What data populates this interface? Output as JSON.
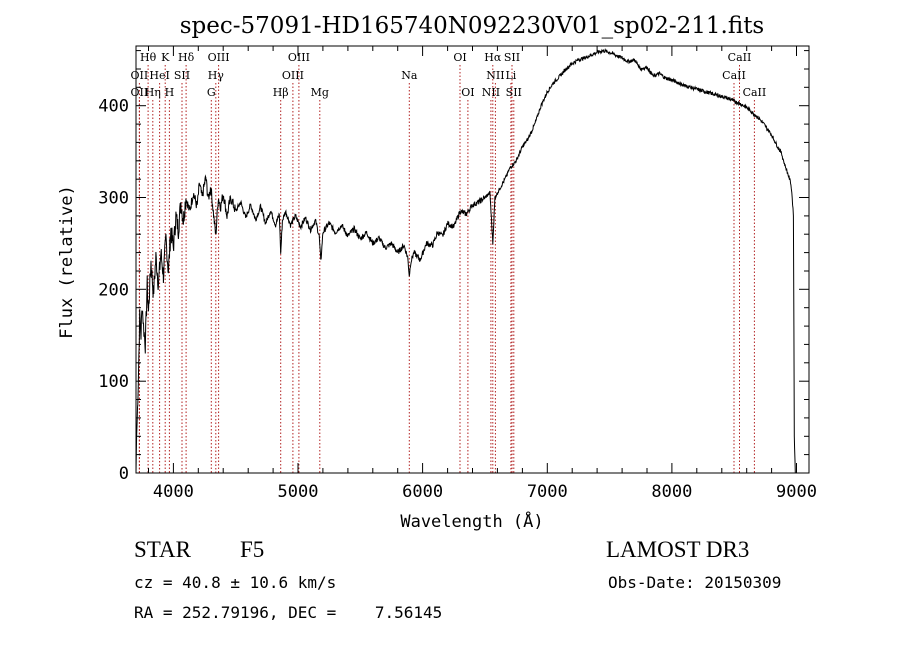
{
  "chart_data": {
    "type": "line",
    "title": "spec-57091-HD165740N092230V01_sp02-211.fits",
    "xlabel": "Wavelength (Å)",
    "ylabel": "Flux (relative)",
    "xlim": [
      3700,
      9100
    ],
    "ylim": [
      0,
      465
    ],
    "xticks": [
      4000,
      5000,
      6000,
      7000,
      8000,
      9000
    ],
    "yticks": [
      0,
      100,
      200,
      300,
      400
    ],
    "grid": false,
    "series": [
      {
        "name": "flux",
        "points": [
          [
            3700,
            0
          ],
          [
            3705,
            40
          ],
          [
            3712,
            70
          ],
          [
            3720,
            110
          ],
          [
            3730,
            170
          ],
          [
            3740,
            150
          ],
          [
            3750,
            185
          ],
          [
            3760,
            160
          ],
          [
            3775,
            140
          ],
          [
            3790,
            205
          ],
          [
            3800,
            175
          ],
          [
            3820,
            230
          ],
          [
            3840,
            195
          ],
          [
            3860,
            235
          ],
          [
            3880,
            205
          ],
          [
            3900,
            240
          ],
          [
            3920,
            215
          ],
          [
            3940,
            255
          ],
          [
            3960,
            220
          ],
          [
            3980,
            265
          ],
          [
            4000,
            245
          ],
          [
            4020,
            280
          ],
          [
            4040,
            265
          ],
          [
            4060,
            295
          ],
          [
            4080,
            275
          ],
          [
            4100,
            300
          ],
          [
            4130,
            285
          ],
          [
            4160,
            305
          ],
          [
            4190,
            290
          ],
          [
            4210,
            315
          ],
          [
            4230,
            300
          ],
          [
            4260,
            322
          ],
          [
            4280,
            298
          ],
          [
            4300,
            312
          ],
          [
            4320,
            285
          ],
          [
            4340,
            258
          ],
          [
            4360,
            300
          ],
          [
            4380,
            290
          ],
          [
            4400,
            305
          ],
          [
            4430,
            280
          ],
          [
            4460,
            300
          ],
          [
            4500,
            285
          ],
          [
            4540,
            295
          ],
          [
            4580,
            278
          ],
          [
            4620,
            292
          ],
          [
            4660,
            276
          ],
          [
            4700,
            290
          ],
          [
            4740,
            272
          ],
          [
            4780,
            286
          ],
          [
            4820,
            270
          ],
          [
            4850,
            282
          ],
          [
            4861,
            238
          ],
          [
            4875,
            275
          ],
          [
            4900,
            285
          ],
          [
            4940,
            270
          ],
          [
            4980,
            280
          ],
          [
            5020,
            268
          ],
          [
            5060,
            278
          ],
          [
            5100,
            265
          ],
          [
            5140,
            275
          ],
          [
            5170,
            258
          ],
          [
            5183,
            230
          ],
          [
            5200,
            262
          ],
          [
            5250,
            272
          ],
          [
            5300,
            262
          ],
          [
            5350,
            270
          ],
          [
            5400,
            258
          ],
          [
            5450,
            266
          ],
          [
            5500,
            255
          ],
          [
            5550,
            262
          ],
          [
            5600,
            250
          ],
          [
            5650,
            256
          ],
          [
            5700,
            245
          ],
          [
            5750,
            250
          ],
          [
            5800,
            240
          ],
          [
            5850,
            248
          ],
          [
            5880,
            235
          ],
          [
            5893,
            215
          ],
          [
            5905,
            230
          ],
          [
            5930,
            240
          ],
          [
            5980,
            232
          ],
          [
            6030,
            250
          ],
          [
            6080,
            248
          ],
          [
            6120,
            262
          ],
          [
            6160,
            258
          ],
          [
            6200,
            272
          ],
          [
            6250,
            268
          ],
          [
            6300,
            285
          ],
          [
            6350,
            282
          ],
          [
            6400,
            292
          ],
          [
            6450,
            295
          ],
          [
            6500,
            300
          ],
          [
            6540,
            305
          ],
          [
            6563,
            250
          ],
          [
            6580,
            300
          ],
          [
            6620,
            310
          ],
          [
            6660,
            320
          ],
          [
            6700,
            332
          ],
          [
            6750,
            340
          ],
          [
            6800,
            355
          ],
          [
            6850,
            365
          ],
          [
            6900,
            380
          ],
          [
            6950,
            400
          ],
          [
            7000,
            415
          ],
          [
            7050,
            425
          ],
          [
            7100,
            432
          ],
          [
            7150,
            440
          ],
          [
            7200,
            446
          ],
          [
            7250,
            450
          ],
          [
            7300,
            452
          ],
          [
            7350,
            455
          ],
          [
            7400,
            458
          ],
          [
            7450,
            460
          ],
          [
            7500,
            458
          ],
          [
            7550,
            455
          ],
          [
            7600,
            452
          ],
          [
            7650,
            448
          ],
          [
            7700,
            450
          ],
          [
            7750,
            440
          ],
          [
            7800,
            442
          ],
          [
            7850,
            432
          ],
          [
            7900,
            435
          ],
          [
            7950,
            430
          ],
          [
            8000,
            428
          ],
          [
            8050,
            425
          ],
          [
            8100,
            422
          ],
          [
            8150,
            420
          ],
          [
            8200,
            418
          ],
          [
            8250,
            416
          ],
          [
            8300,
            414
          ],
          [
            8350,
            412
          ],
          [
            8400,
            410
          ],
          [
            8450,
            408
          ],
          [
            8500,
            405
          ],
          [
            8550,
            402
          ],
          [
            8600,
            398
          ],
          [
            8650,
            392
          ],
          [
            8700,
            386
          ],
          [
            8750,
            378
          ],
          [
            8800,
            368
          ],
          [
            8850,
            355
          ],
          [
            8880,
            348
          ],
          [
            8900,
            338
          ],
          [
            8920,
            330
          ],
          [
            8940,
            322
          ],
          [
            8955,
            315
          ],
          [
            8965,
            300
          ],
          [
            8975,
            280
          ],
          [
            8982,
            40
          ],
          [
            8990,
            0
          ]
        ]
      }
    ],
    "line_marks": [
      {
        "label": "Hθ",
        "x": 3797,
        "row": 0
      },
      {
        "label": "K",
        "x": 3934,
        "row": 0
      },
      {
        "label": "Hδ",
        "x": 4102,
        "row": 0
      },
      {
        "label": "OIII",
        "x": 4363,
        "row": 0
      },
      {
        "label": "OIII",
        "x": 5007,
        "row": 0
      },
      {
        "label": "OI",
        "x": 6300,
        "row": 0
      },
      {
        "label": "Hα",
        "x": 6563,
        "row": 0
      },
      {
        "label": "SII",
        "x": 6717,
        "row": 0
      },
      {
        "label": "CaII",
        "x": 8542,
        "row": 0
      },
      {
        "label": "OII",
        "x": 3727,
        "row": 1
      },
      {
        "label": "HeI",
        "x": 3889,
        "row": 1
      },
      {
        "label": "SII",
        "x": 4069,
        "row": 1
      },
      {
        "label": "Hγ",
        "x": 4340,
        "row": 1
      },
      {
        "label": "OIII",
        "x": 4959,
        "row": 1
      },
      {
        "label": "Na",
        "x": 5893,
        "row": 1
      },
      {
        "label": "NII",
        "x": 6584,
        "row": 1
      },
      {
        "label": "Li",
        "x": 6708,
        "row": 1
      },
      {
        "label": "CaII",
        "x": 8498,
        "row": 1
      },
      {
        "label": "OII",
        "x": 3727,
        "row": 2
      },
      {
        "label": "Hη",
        "x": 3835,
        "row": 2
      },
      {
        "label": "H",
        "x": 3968,
        "row": 2
      },
      {
        "label": "G",
        "x": 4304,
        "row": 2
      },
      {
        "label": "Hβ",
        "x": 4861,
        "row": 2
      },
      {
        "label": "Mg",
        "x": 5175,
        "row": 2
      },
      {
        "label": "OI",
        "x": 6363,
        "row": 2
      },
      {
        "label": "NII",
        "x": 6548,
        "row": 2
      },
      {
        "label": "SII",
        "x": 6731,
        "row": 2
      },
      {
        "label": "CaII",
        "x": 8662,
        "row": 2
      }
    ]
  },
  "info": {
    "object_class": "STAR",
    "subclass": "F5",
    "survey": "LAMOST DR3",
    "redshift": "cz = 40.8 ± 10.6 km/s",
    "obs_date": "Obs-Date: 20150309",
    "coords": "RA = 252.79196, DEC =    7.56145"
  }
}
